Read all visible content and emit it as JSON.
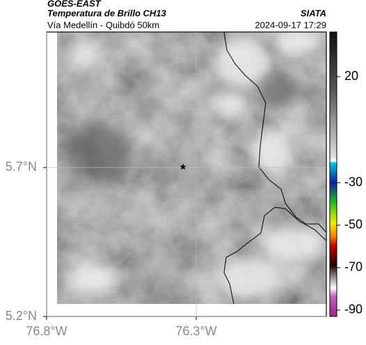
{
  "header": {
    "source": "GOES-EAST",
    "title": "Temperatura de Brillo CH13",
    "subtitle": "Vía Medellín - Quibdó 50km",
    "agency": "SIATA",
    "datetime": "2024-09-17 17:29"
  },
  "map": {
    "lonlim": [
      -76.8,
      -75.865
    ],
    "latlim": [
      5.2,
      6.155
    ],
    "lonticks": [
      {
        "value": -76.8,
        "label": "76.8°W"
      },
      {
        "value": -76.3,
        "label": "76.3°W"
      }
    ],
    "latticks": [
      {
        "value": 5.2,
        "label": "5.2°N"
      },
      {
        "value": 5.7,
        "label": "5.7°N"
      }
    ],
    "grid": true,
    "marker": {
      "lon": -76.344,
      "lat": 5.702
    }
  },
  "colorbar": {
    "lim": [
      -93,
      41
    ],
    "ticks": [
      20,
      -30,
      -50,
      -70,
      -90
    ]
  }
}
